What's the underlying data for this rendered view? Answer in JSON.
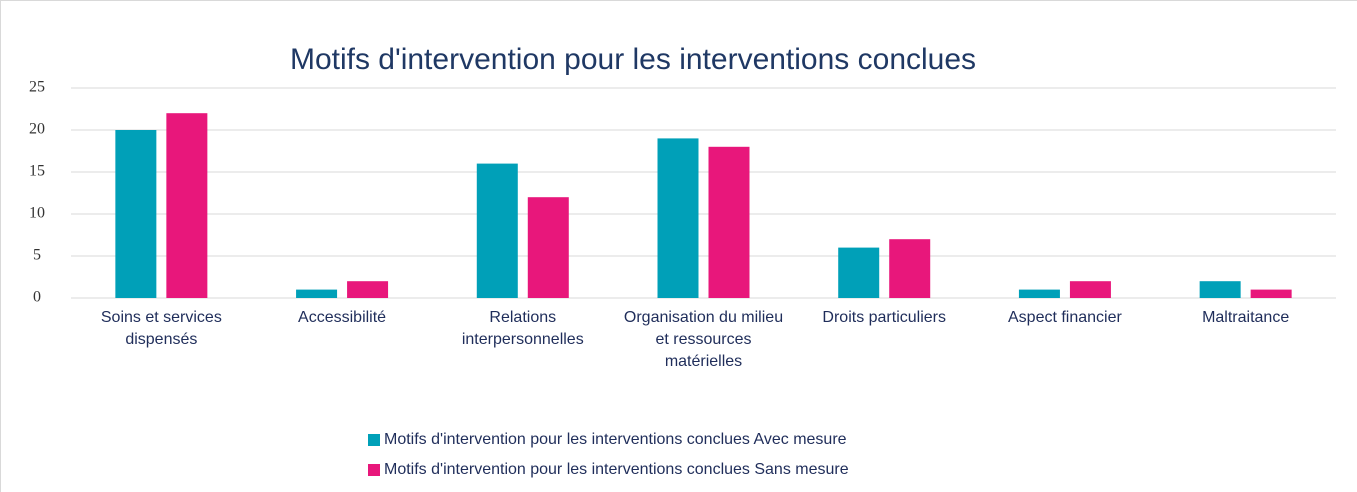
{
  "chart_data": {
    "type": "bar",
    "title": "Motifs d'intervention pour les interventions conclues",
    "categories": [
      "Soins et services dispensés",
      "Accessibilité",
      "Relations interpersonnelles",
      "Organisation du milieu et ressources matérielles",
      "Droits particuliers",
      "Aspect financier",
      "Maltraitance"
    ],
    "series": [
      {
        "name": "Motifs d'intervention pour les interventions conclues Avec mesure",
        "color": "#00a0b8",
        "values": [
          20,
          1,
          16,
          19,
          6,
          1,
          2
        ]
      },
      {
        "name": "Motifs d'intervention pour les interventions conclues Sans mesure",
        "color": "#e8177b",
        "values": [
          22,
          2,
          12,
          18,
          7,
          2,
          1
        ]
      }
    ],
    "ylim": [
      0,
      25
    ],
    "yticks": [
      0,
      5,
      10,
      15,
      20,
      25
    ],
    "grid": true,
    "legend": "bottom"
  }
}
